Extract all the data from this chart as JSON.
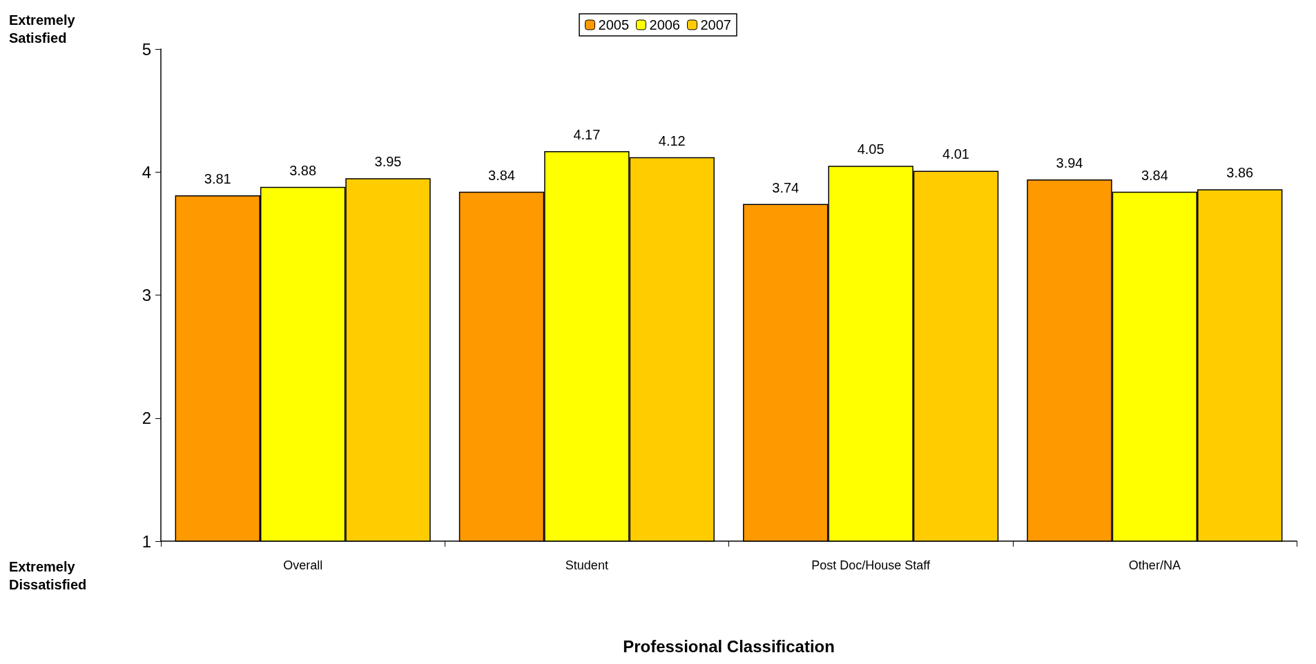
{
  "chart_data": {
    "type": "bar",
    "xlabel": "Professional Classification",
    "categories": [
      "Overall",
      "Student",
      "Post Doc/House Staff",
      "Other/NA"
    ],
    "series": [
      {
        "name": "2005",
        "color": "#ff9900",
        "values": [
          3.81,
          3.84,
          3.74,
          3.94
        ]
      },
      {
        "name": "2006",
        "color": "#ffff00",
        "values": [
          3.88,
          4.17,
          4.05,
          3.84
        ]
      },
      {
        "name": "2007",
        "color": "#ffcc00",
        "values": [
          3.95,
          4.12,
          4.01,
          3.86
        ]
      }
    ],
    "ylim": [
      1,
      5
    ],
    "yticks": [
      1,
      2,
      3,
      4,
      5
    ],
    "grid": false,
    "legend": "top",
    "data_labels": true,
    "annotations": [
      "Extremely Satisfied",
      "Extremely Dissatisfied"
    ]
  }
}
